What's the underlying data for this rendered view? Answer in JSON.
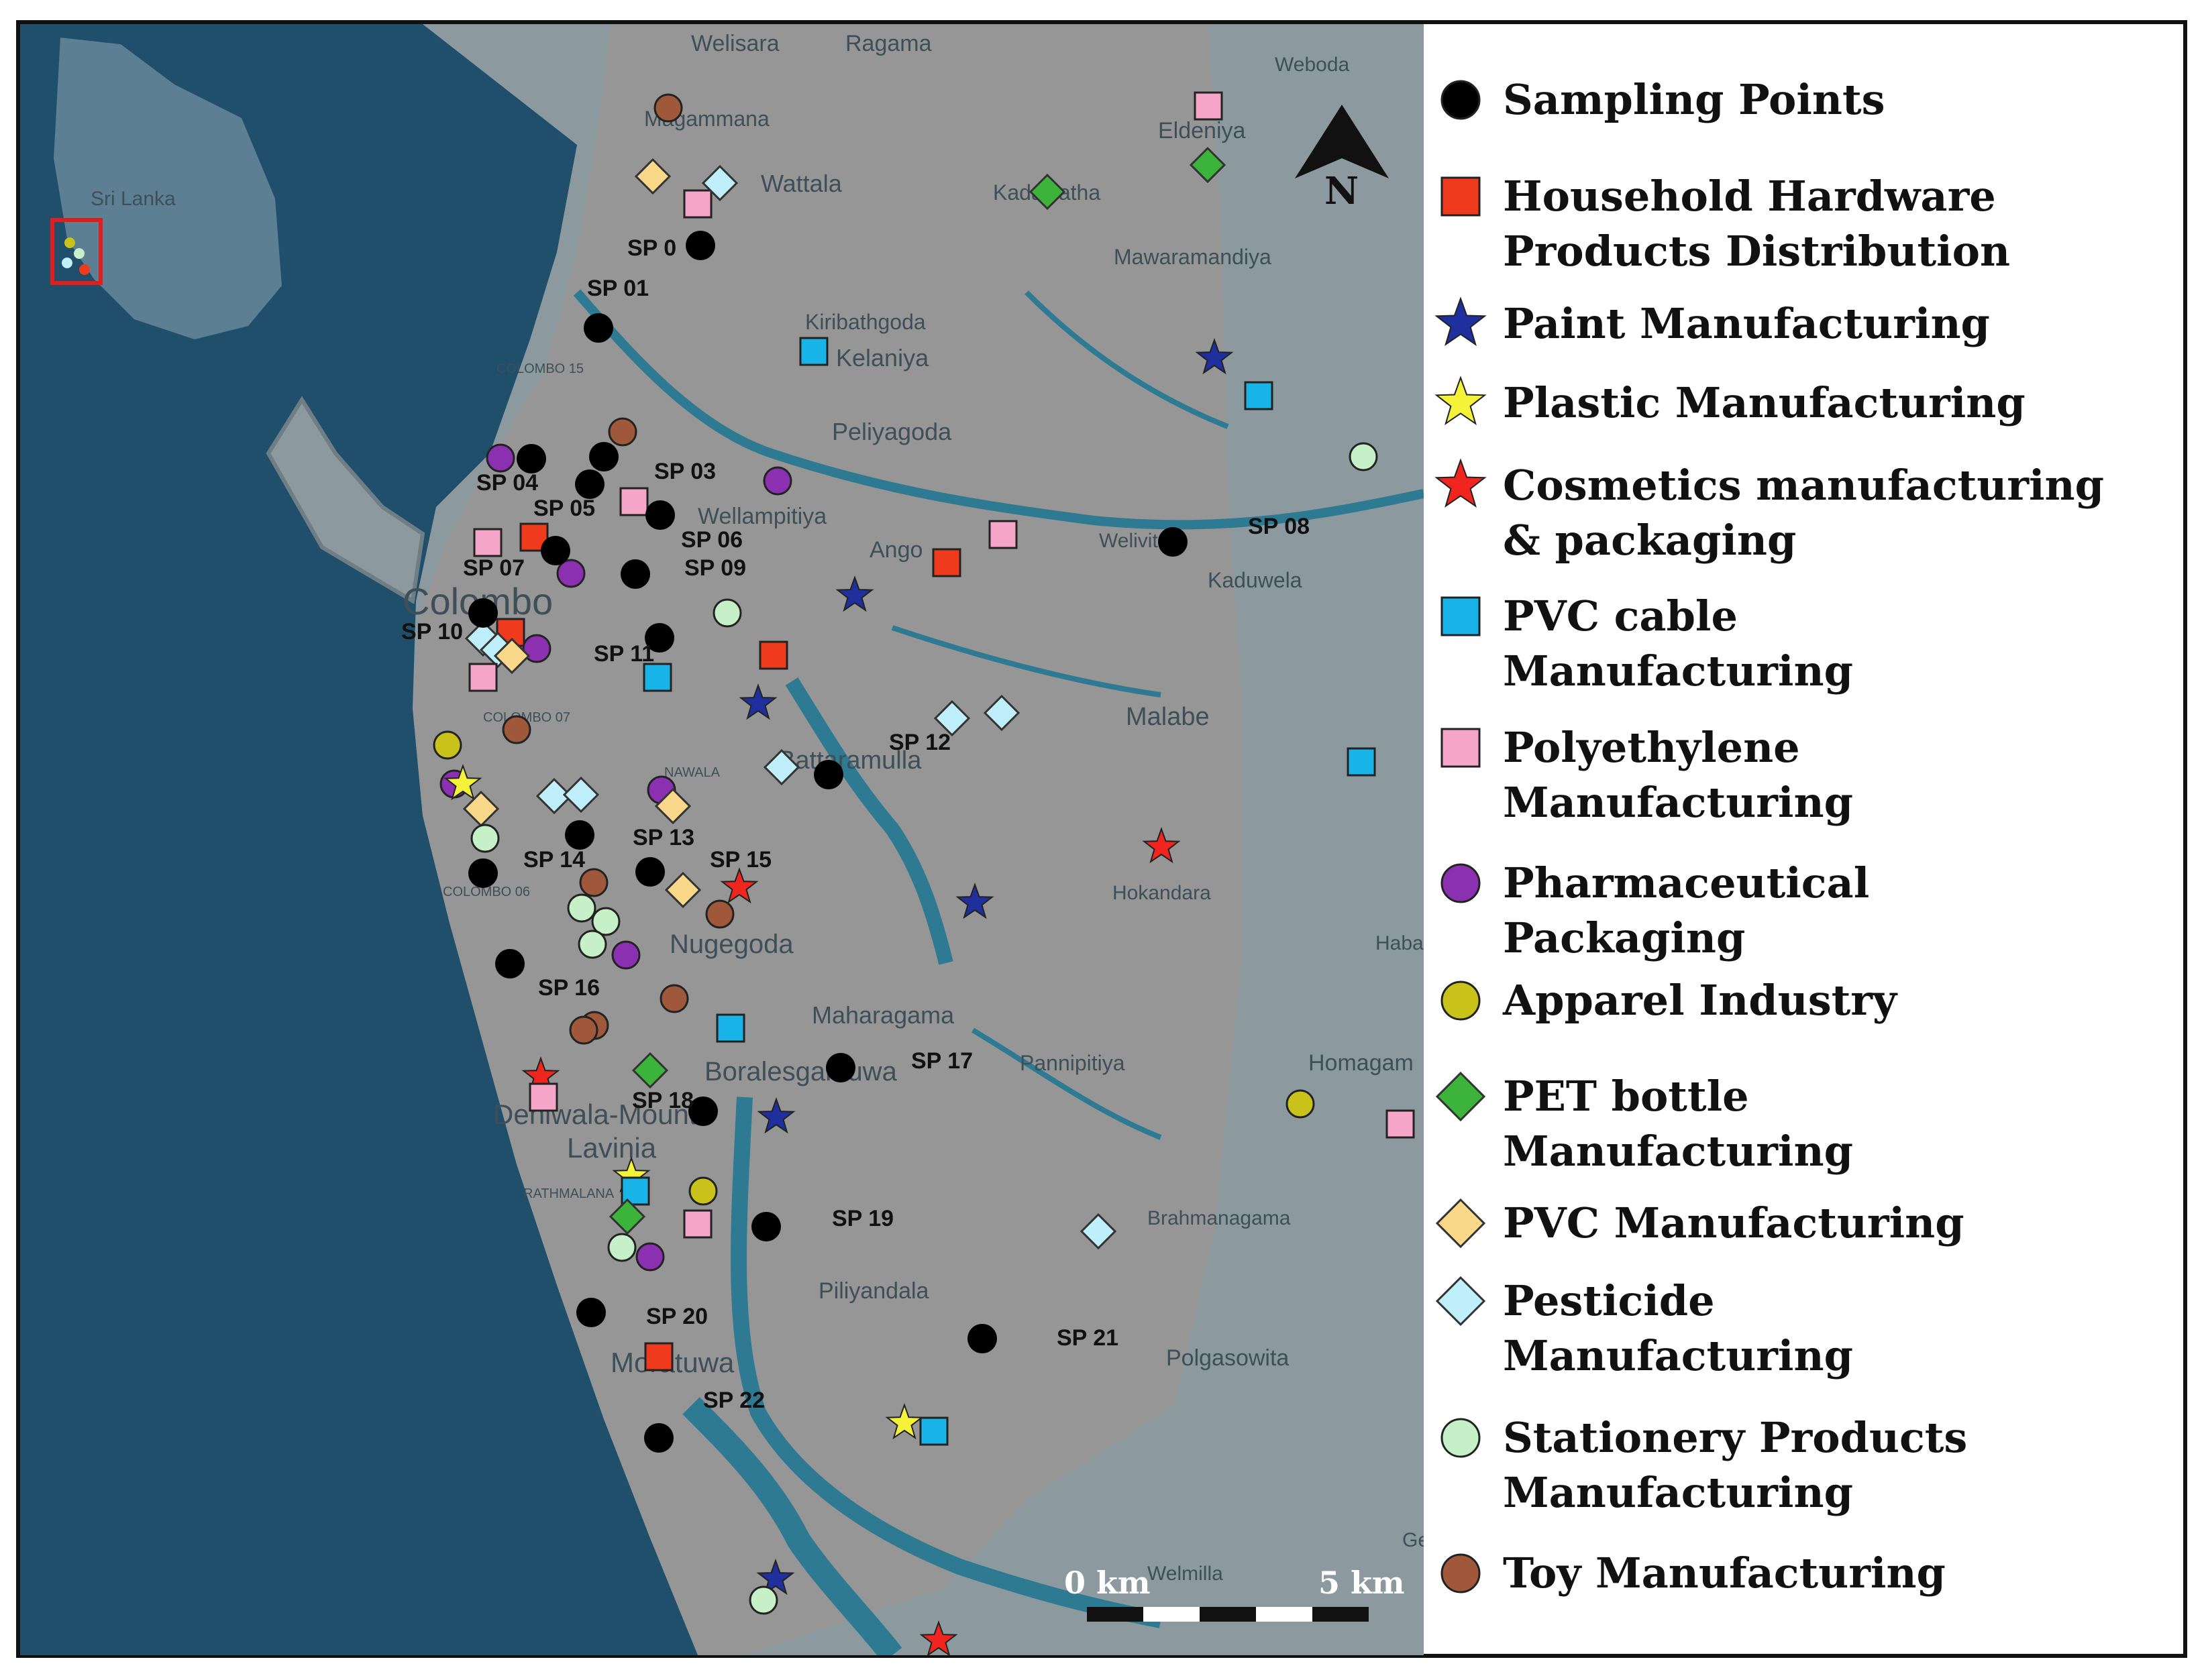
{
  "map": {
    "colors": {
      "sea": "#1f4f6b",
      "land": "#8c9aa0",
      "study": "#969696",
      "water": "#2f7a93",
      "frame": "#111111"
    },
    "places": [
      "Welisara",
      "Ragama",
      "Weboda",
      "Magammana",
      "Eldeniya",
      "Wattala",
      "Kadawatha",
      "Mawaramandiya",
      "Kiribathgoda",
      "Kelaniya",
      "COLOMBO 15",
      "Peliyagoda",
      "Wellampitiya",
      "Welivita",
      "Kaduwela",
      "Colombo",
      "Ango",
      "COLOMBO 07",
      "NAWALA",
      "Battaramulla",
      "Malabe",
      "Hokandara",
      "COLOMBO 06",
      "Nugegoda",
      "Habar",
      "Maharagama",
      "Pannipitiya",
      "Homagam",
      "Boralesgamuwa",
      "Dehiwala-Mount",
      "Lavinia",
      "RATHMALANA",
      "Brahmanagama",
      "Piliyandala",
      "Moratuwa",
      "Polgasowita",
      "Welmilla",
      "Sri Lanka",
      "Ge"
    ],
    "sampling_points": [
      "SP 0",
      "SP 01",
      "SP 03",
      "SP 04",
      "SP 05",
      "SP 06",
      "SP 07",
      "SP 08",
      "SP 09",
      "SP 10",
      "SP 11",
      "SP 12",
      "SP 13",
      "SP 14",
      "SP 15",
      "SP 16",
      "SP 17",
      "SP 18",
      "SP 19",
      "SP 20",
      "SP 21",
      "SP 22"
    ],
    "north": {
      "label": "N",
      "icon": "north-arrow-icon"
    },
    "scale_bar": {
      "start_label": "0 km",
      "end_label": "5 km"
    },
    "inset": {
      "label": "Sri Lanka",
      "highlight_color": "#e21d1d"
    }
  },
  "legend": [
    {
      "label": "Sampling Points",
      "symbol": "circle",
      "color": "#000000",
      "icon": "sampling-point-icon"
    },
    {
      "label": "Household Hardware\nProducts Distribution",
      "symbol": "square",
      "color": "#f03a1e",
      "icon": "household-hardware-icon"
    },
    {
      "label": "Paint Manufacturing",
      "symbol": "star",
      "color": "#1f2f9e",
      "icon": "paint-icon"
    },
    {
      "label": "Plastic Manufacturing",
      "symbol": "star",
      "color": "#f5f23a",
      "icon": "plastic-icon"
    },
    {
      "label": "Cosmetics manufacturing\n& packaging",
      "symbol": "star",
      "color": "#f0251e",
      "icon": "cosmetics-icon"
    },
    {
      "label": "PVC cable\nManufacturing",
      "symbol": "square",
      "color": "#18b4e8",
      "icon": "pvc-cable-icon"
    },
    {
      "label": "Polyethylene\nManufacturing",
      "symbol": "square",
      "color": "#f5a6c8",
      "icon": "polyethylene-icon"
    },
    {
      "label": "Pharmaceutical\nPackaging",
      "symbol": "circle",
      "color": "#8a30b0",
      "icon": "pharmaceutical-icon"
    },
    {
      "label": "Apparel Industry",
      "symbol": "circle",
      "color": "#c8c21a",
      "icon": "apparel-icon"
    },
    {
      "label": "PET bottle\nManufacturing",
      "symbol": "diamond",
      "color": "#3cb43c",
      "icon": "pet-bottle-icon"
    },
    {
      "label": "PVC Manufacturing",
      "symbol": "diamond",
      "color": "#fad88a",
      "icon": "pvc-icon"
    },
    {
      "label": "Pesticide\nManufacturing",
      "symbol": "diamond",
      "color": "#bfeffa",
      "icon": "pesticide-icon"
    },
    {
      "label": "Stationery Products\nManufacturing",
      "symbol": "circle",
      "color": "#c6f0c8",
      "icon": "stationery-icon"
    },
    {
      "label": "Toy Manufacturing",
      "symbol": "circle",
      "color": "#a0583a",
      "icon": "toy-icon"
    }
  ]
}
